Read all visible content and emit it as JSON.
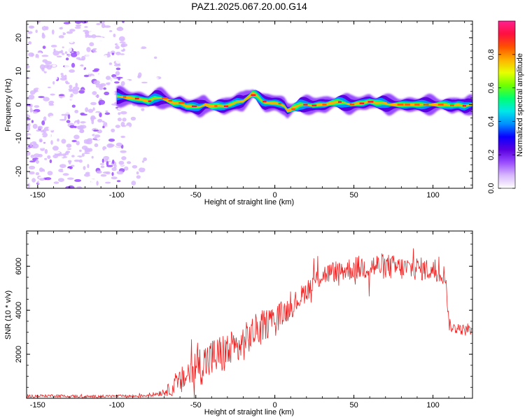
{
  "title": "PAZ1.2025.067.20.00.G14",
  "chart_data": [
    {
      "type": "heatmap",
      "xlabel": "Height of straight line (km)",
      "ylabel": "Frequency (Hz)",
      "xlim": [
        -157,
        125
      ],
      "ylim": [
        -25,
        25
      ],
      "xticks": [
        -150,
        -100,
        -50,
        0,
        50,
        100
      ],
      "yticks": [
        -20,
        -10,
        0,
        10,
        20
      ],
      "colorbar": {
        "label": "Normalized spectral amplitude",
        "range": [
          0,
          1
        ],
        "ticks": [
          "0.0",
          "0.2",
          "0.4",
          "0.6",
          "0.8"
        ],
        "tick_values": [
          0,
          0.2,
          0.4,
          0.6,
          0.8
        ],
        "colors": [
          "#ffffff",
          "#d8b8ff",
          "#9a4dff",
          "#5a00e0",
          "#0a00ff",
          "#0090ff",
          "#00e8e8",
          "#00ff70",
          "#70ff00",
          "#e8ff00",
          "#ffb000",
          "#ff5000",
          "#ff1040",
          "#ff2090"
        ]
      },
      "ridge": {
        "x": [
          -100,
          -96,
          -92,
          -88,
          -84,
          -80,
          -76,
          -72,
          -68,
          -64,
          -60,
          -56,
          -52,
          -48,
          -44,
          -40,
          -36,
          -32,
          -28,
          -24,
          -20,
          -16,
          -14,
          -12,
          -10,
          -8,
          -6,
          -4,
          -2,
          0,
          2,
          4,
          6,
          8,
          10,
          12,
          14,
          16,
          20,
          24,
          28,
          32,
          36,
          40,
          44,
          48,
          52,
          56,
          60,
          64,
          68,
          72,
          76,
          80,
          84,
          88,
          92,
          96,
          100,
          104,
          108,
          112,
          116,
          120,
          124
        ],
        "y": [
          2.5,
          2.3,
          2.0,
          1.8,
          1.5,
          1.0,
          2.0,
          2.0,
          1.3,
          0.5,
          0.5,
          -0.5,
          -0.5,
          -0.8,
          0.0,
          -0.5,
          -0.3,
          -0.5,
          0.0,
          0.8,
          1.0,
          2.5,
          3.3,
          3.0,
          2.0,
          1.0,
          0.5,
          0.5,
          0.5,
          0.5,
          0.3,
          0.0,
          -0.5,
          -1.8,
          -1.5,
          -0.8,
          -0.5,
          0.0,
          0.0,
          -0.3,
          0.0,
          0.0,
          0.5,
          0.8,
          0.5,
          0.0,
          0.3,
          0.5,
          1.0,
          0.5,
          0.5,
          0.0,
          0.0,
          0.0,
          0.0,
          0.0,
          0.0,
          0.0,
          0.0,
          0.0,
          0.0,
          -0.3,
          0.0,
          -0.5,
          0.0
        ]
      }
    },
    {
      "type": "line",
      "xlabel": "Height of straight line (km)",
      "ylabel": "SNR (10 * v/v)",
      "xlim": [
        -157,
        125
      ],
      "ylim": [
        0,
        7600
      ],
      "xticks": [
        -150,
        -100,
        -50,
        0,
        50,
        100
      ],
      "yticks": [
        2000,
        4000,
        6000
      ],
      "color": "#ee2222",
      "envelope": {
        "x": [
          -157,
          -140,
          -120,
          -100,
          -85,
          -75,
          -70,
          -65,
          -60,
          -55,
          -50,
          -45,
          -40,
          -35,
          -30,
          -25,
          -20,
          -15,
          -10,
          -5,
          0,
          5,
          10,
          15,
          20,
          25,
          30,
          40,
          50,
          60,
          70,
          80,
          90,
          100,
          108,
          110,
          112,
          120,
          125
        ],
        "y": [
          100,
          120,
          80,
          100,
          100,
          200,
          300,
          450,
          700,
          1100,
          1400,
          1600,
          1800,
          1950,
          2100,
          2200,
          2500,
          2900,
          3200,
          3400,
          3600,
          3850,
          4150,
          4500,
          4900,
          5300,
          5600,
          5800,
          5900,
          6000,
          6000,
          5900,
          5900,
          5800,
          5600,
          3400,
          3200,
          3100,
          3000
        ],
        "noise_amplitude": [
          60,
          70,
          60,
          60,
          70,
          100,
          200,
          350,
          600,
          800,
          900,
          950,
          950,
          950,
          950,
          900,
          850,
          800,
          750,
          700,
          650,
          600,
          550,
          500,
          500,
          500,
          500,
          500,
          550,
          600,
          600,
          550,
          550,
          500,
          450,
          300,
          250,
          250,
          250
        ]
      }
    }
  ]
}
